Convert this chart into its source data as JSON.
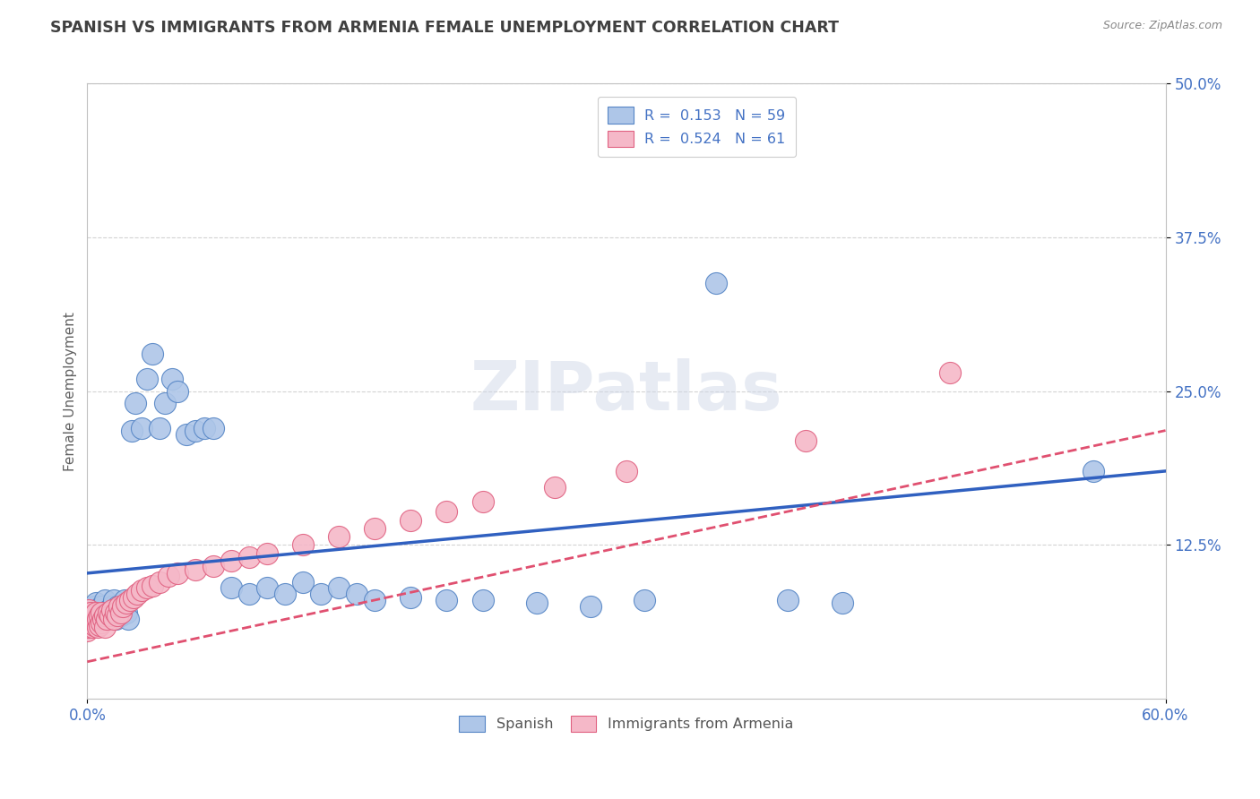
{
  "title": "SPANISH VS IMMIGRANTS FROM ARMENIA FEMALE UNEMPLOYMENT CORRELATION CHART",
  "source": "Source: ZipAtlas.com",
  "ylabel": "Female Unemployment",
  "xlim": [
    0.0,
    0.6
  ],
  "ylim": [
    0.0,
    0.5
  ],
  "grid_color": "#c8c8c8",
  "background_color": "#ffffff",
  "spanish_color": "#aec6e8",
  "armenia_color": "#f5b8c8",
  "spanish_edge_color": "#5585c5",
  "armenia_edge_color": "#e06080",
  "spanish_line_color": "#3060c0",
  "armenia_line_color": "#e05070",
  "title_color": "#404040",
  "source_color": "#888888",
  "axis_label_color": "#606060",
  "tick_label_color": "#4472c4",
  "legend_text_color": "#4472c4",
  "spanish_x": [
    0.0,
    0.002,
    0.003,
    0.004,
    0.005,
    0.005,
    0.006,
    0.007,
    0.008,
    0.008,
    0.009,
    0.01,
    0.01,
    0.011,
    0.012,
    0.013,
    0.014,
    0.015,
    0.015,
    0.016,
    0.017,
    0.018,
    0.019,
    0.02,
    0.021,
    0.022,
    0.023,
    0.025,
    0.027,
    0.03,
    0.033,
    0.036,
    0.04,
    0.043,
    0.047,
    0.05,
    0.055,
    0.06,
    0.065,
    0.07,
    0.08,
    0.09,
    0.1,
    0.11,
    0.12,
    0.13,
    0.14,
    0.15,
    0.16,
    0.18,
    0.2,
    0.22,
    0.25,
    0.28,
    0.31,
    0.35,
    0.39,
    0.42,
    0.56
  ],
  "spanish_y": [
    0.07,
    0.068,
    0.072,
    0.075,
    0.068,
    0.078,
    0.07,
    0.065,
    0.072,
    0.075,
    0.07,
    0.065,
    0.08,
    0.068,
    0.072,
    0.068,
    0.075,
    0.07,
    0.08,
    0.065,
    0.075,
    0.07,
    0.068,
    0.075,
    0.08,
    0.07,
    0.065,
    0.218,
    0.24,
    0.22,
    0.26,
    0.28,
    0.22,
    0.24,
    0.26,
    0.25,
    0.215,
    0.218,
    0.22,
    0.22,
    0.09,
    0.085,
    0.09,
    0.085,
    0.095,
    0.085,
    0.09,
    0.085,
    0.08,
    0.082,
    0.08,
    0.08,
    0.078,
    0.075,
    0.08,
    0.338,
    0.08,
    0.078,
    0.185
  ],
  "armenia_x": [
    0.0,
    0.0,
    0.0,
    0.0,
    0.001,
    0.001,
    0.001,
    0.001,
    0.002,
    0.002,
    0.002,
    0.003,
    0.003,
    0.004,
    0.004,
    0.005,
    0.005,
    0.006,
    0.006,
    0.007,
    0.007,
    0.008,
    0.008,
    0.009,
    0.01,
    0.01,
    0.011,
    0.012,
    0.013,
    0.014,
    0.015,
    0.016,
    0.017,
    0.018,
    0.019,
    0.02,
    0.022,
    0.024,
    0.026,
    0.028,
    0.03,
    0.033,
    0.036,
    0.04,
    0.045,
    0.05,
    0.06,
    0.07,
    0.08,
    0.09,
    0.1,
    0.12,
    0.14,
    0.16,
    0.18,
    0.2,
    0.22,
    0.26,
    0.3,
    0.4,
    0.48
  ],
  "armenia_y": [
    0.055,
    0.06,
    0.065,
    0.07,
    0.058,
    0.062,
    0.068,
    0.072,
    0.06,
    0.065,
    0.07,
    0.058,
    0.065,
    0.06,
    0.068,
    0.062,
    0.07,
    0.058,
    0.065,
    0.06,
    0.068,
    0.062,
    0.07,
    0.065,
    0.058,
    0.068,
    0.065,
    0.07,
    0.068,
    0.072,
    0.065,
    0.07,
    0.068,
    0.075,
    0.07,
    0.075,
    0.078,
    0.08,
    0.082,
    0.085,
    0.088,
    0.09,
    0.092,
    0.095,
    0.1,
    0.102,
    0.105,
    0.108,
    0.112,
    0.115,
    0.118,
    0.125,
    0.132,
    0.138,
    0.145,
    0.152,
    0.16,
    0.172,
    0.185,
    0.21,
    0.265
  ],
  "spanish_trend_x": [
    0.0,
    0.6
  ],
  "spanish_trend_y": [
    0.102,
    0.185
  ],
  "armenia_trend_x": [
    0.0,
    0.6
  ],
  "armenia_trend_y": [
    0.03,
    0.218
  ]
}
